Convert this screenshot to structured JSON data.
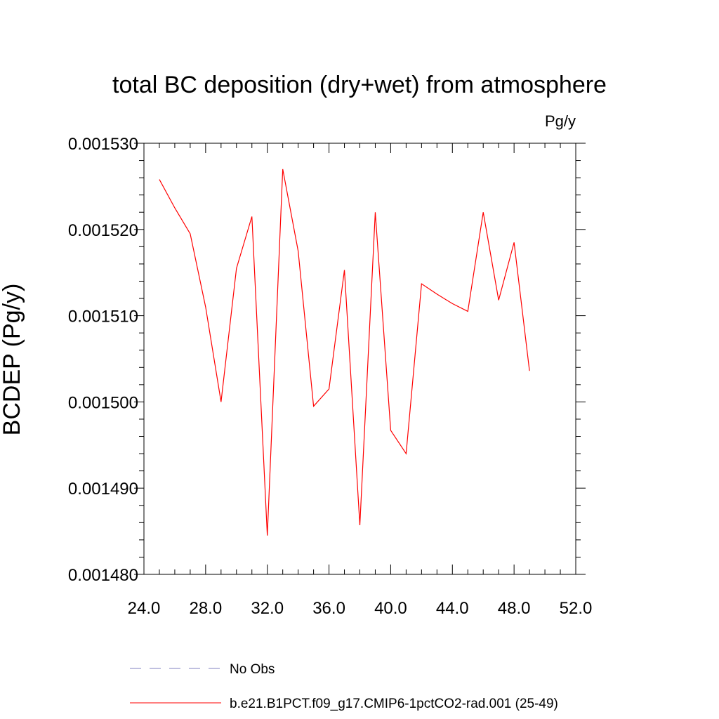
{
  "chart_data": {
    "type": "line",
    "title": "total BC deposition (dry+wet) from atmosphere",
    "units_label": "Pg/y",
    "ylabel": "BCDEP  (Pg/y)",
    "xlabel": "",
    "xlim": [
      24,
      52
    ],
    "ylim": [
      0.00148,
      0.00153
    ],
    "x_ticks": [
      24,
      28,
      32,
      36,
      40,
      44,
      48,
      52
    ],
    "x_tick_labels": [
      "24.0",
      "28.0",
      "32.0",
      "36.0",
      "40.0",
      "44.0",
      "48.0",
      "52.0"
    ],
    "y_ticks": [
      0.00148,
      0.00149,
      0.0015,
      0.00151,
      0.00152,
      0.00153
    ],
    "y_tick_labels": [
      "0.001480",
      "0.001490",
      "0.001500",
      "0.001510",
      "0.001520",
      "0.001530"
    ],
    "grid": false,
    "legend_position": "bottom",
    "series": [
      {
        "name": "b.e21.B1PCT.f09_g17.CMIP6-1pctCO2-rad.001 (25-49)",
        "color": "#ff0000",
        "style": "solid",
        "x": [
          25,
          26,
          27,
          28,
          29,
          30,
          31,
          32,
          33,
          34,
          35,
          36,
          37,
          38,
          39,
          40,
          41,
          42,
          43,
          44,
          45,
          46,
          47,
          48,
          49
        ],
        "y": [
          0.0015258,
          0.0015225,
          0.0015195,
          0.001511,
          0.0015,
          0.0015155,
          0.0015215,
          0.0014845,
          0.001527,
          0.0015175,
          0.0014995,
          0.0015015,
          0.0015153,
          0.0014857,
          0.001522,
          0.0014967,
          0.001494,
          0.0015137,
          0.0015125,
          0.0015114,
          0.0015105,
          0.001522,
          0.0015118,
          0.0015185,
          0.0015036
        ]
      }
    ],
    "legend": [
      {
        "label": "No Obs",
        "color": "#8080c0",
        "style": "dashed"
      },
      {
        "label": "b.e21.B1PCT.f09_g17.CMIP6-1pctCO2-rad.001 (25-49)",
        "color": "#ff0000",
        "style": "solid"
      }
    ]
  }
}
